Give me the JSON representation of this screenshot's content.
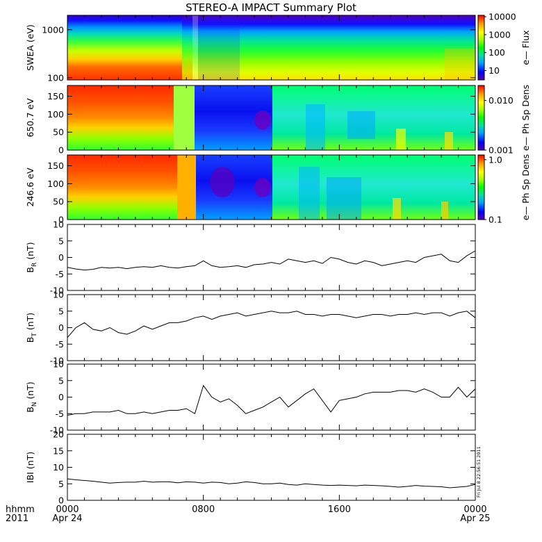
{
  "title": "STEREO-A IMPACT Summary Plot",
  "x_axis": {
    "corner_labels": [
      "hhmm",
      "2011"
    ],
    "ticks": [
      {
        "hour": 0,
        "lines": [
          "0000",
          "Apr 24"
        ]
      },
      {
        "hour": 8,
        "lines": [
          "0800",
          ""
        ]
      },
      {
        "hour": 16,
        "lines": [
          "1600",
          ""
        ]
      },
      {
        "hour": 24,
        "lines": [
          "0000",
          "Apr 25"
        ]
      }
    ],
    "minor_step_hours": 1,
    "range_hours": [
      0,
      24
    ]
  },
  "timestamp": "Fri Jul  8 22:56:51 2011",
  "colors": {
    "line": "#000000",
    "spectrogram_colormap": [
      "#5a00b0",
      "#0000ff",
      "#00a8ff",
      "#00e0a0",
      "#00ff00",
      "#a0ff00",
      "#ffff00",
      "#ff9900",
      "#ff0000"
    ]
  },
  "chart_data": [
    {
      "type": "heatmap",
      "name": "swea",
      "ylabel": "SWEA (eV)",
      "y_ticks": [
        "100",
        "1000"
      ],
      "y_range_ev": [
        90,
        2000
      ],
      "y_scale": "log",
      "colorbar": {
        "label": "e— Flux",
        "ticks": [
          "10",
          "100",
          "1000",
          "10000"
        ],
        "range": [
          3,
          12000
        ],
        "scale": "log"
      },
      "structure": "High flux (red) at low energies before ~0730 UT, transitioning to lower flux (yellow-green) after ~0800 UT; flux falls off with energy, blue/violet above ~1500 eV",
      "transition_hour": 7.5
    },
    {
      "type": "heatmap",
      "name": "pad650",
      "ylabel": "650.7 eV",
      "y_ticks": [
        "0",
        "50",
        "100",
        "150"
      ],
      "y_range_deg": [
        0,
        180
      ],
      "colorbar": {
        "label": "e— Ph Sp Dens",
        "ticks": [
          "0.001",
          "0.010"
        ],
        "range": [
          0.001,
          0.02
        ],
        "scale": "log"
      },
      "structure": "Red/orange (high) before ~0600 UT; blue/violet (low) between ~0730 and ~1200 UT; mixed green/cyan after 1200 UT",
      "transition_hour": 7.5
    },
    {
      "type": "heatmap",
      "name": "pad246",
      "ylabel": "246.6 eV",
      "y_ticks": [
        "0",
        "50",
        "100",
        "150"
      ],
      "y_range_deg": [
        0,
        180
      ],
      "colorbar": {
        "label": "e— Ph Sp Dens",
        "ticks": [
          "0.1",
          "1.0"
        ],
        "range": [
          0.1,
          1.2
        ],
        "scale": "log"
      },
      "structure": "Red/orange (high) before ~0700 UT; blue/violet (low) between ~0730 and ~1200 UT; green/cyan after 1200 UT",
      "transition_hour": 7.5
    },
    {
      "type": "line",
      "name": "BR",
      "ylabel": "B",
      "ylabel_sub": "R",
      "ylabel_unit": " (nT)",
      "ylim": [
        -10,
        10
      ],
      "y_ticks": [
        -10,
        -5,
        0,
        5,
        10
      ],
      "x_hours": [
        0,
        0.5,
        1,
        1.5,
        2,
        2.5,
        3,
        3.5,
        4,
        4.5,
        5,
        5.5,
        6,
        6.5,
        7,
        7.5,
        8,
        8.5,
        9,
        9.5,
        10,
        10.5,
        11,
        11.5,
        12,
        12.5,
        13,
        13.5,
        14,
        14.5,
        15,
        15.5,
        16,
        16.5,
        17,
        17.5,
        18,
        18.5,
        19,
        19.5,
        20,
        20.5,
        21,
        21.5,
        22,
        22.5,
        23,
        23.5,
        24
      ],
      "values": [
        -3,
        -3.5,
        -3.8,
        -3.6,
        -3,
        -3.2,
        -3,
        -3.4,
        -3,
        -2.8,
        -3,
        -2.5,
        -3,
        -3.2,
        -2.8,
        -2.5,
        -1,
        -2.5,
        -3,
        -2.8,
        -2.5,
        -3,
        -2.2,
        -2,
        -1.5,
        -2,
        -0.5,
        -1,
        -1.5,
        -1,
        -1.8,
        0,
        -0.5,
        -1.5,
        -2,
        -1,
        -1.5,
        -2.5,
        -2,
        -1.5,
        -1,
        -1.5,
        0,
        0.5,
        1,
        -1,
        -1.5,
        0.5,
        2
      ]
    },
    {
      "type": "line",
      "name": "BT",
      "ylabel": "B",
      "ylabel_sub": "T",
      "ylabel_unit": " (nT)",
      "ylim": [
        -10,
        10
      ],
      "y_ticks": [
        -10,
        -5,
        0,
        5,
        10
      ],
      "x_hours": [
        0,
        0.5,
        1,
        1.5,
        2,
        2.5,
        3,
        3.5,
        4,
        4.5,
        5,
        5.5,
        6,
        6.5,
        7,
        7.5,
        8,
        8.5,
        9,
        9.5,
        10,
        10.5,
        11,
        11.5,
        12,
        12.5,
        13,
        13.5,
        14,
        14.5,
        15,
        15.5,
        16,
        16.5,
        17,
        17.5,
        18,
        18.5,
        19,
        19.5,
        20,
        20.5,
        21,
        21.5,
        22,
        22.5,
        23,
        23.5,
        24
      ],
      "values": [
        -3,
        0,
        1.5,
        -0.5,
        -1,
        0,
        -1.5,
        -2,
        -1,
        0.5,
        -0.5,
        0.5,
        1.5,
        1.5,
        2,
        3,
        3.5,
        2.5,
        3.5,
        4,
        4.5,
        3.5,
        4,
        4.5,
        5,
        4.5,
        4.5,
        5,
        4,
        4,
        3.5,
        4,
        4,
        3.5,
        3,
        3.5,
        4,
        4,
        3.5,
        4,
        4,
        4.5,
        4,
        4.5,
        4.5,
        3.5,
        4.5,
        5,
        3
      ]
    },
    {
      "type": "line",
      "name": "BN",
      "ylabel": "B",
      "ylabel_sub": "N",
      "ylabel_unit": " (nT)",
      "ylim": [
        -10,
        10
      ],
      "y_ticks": [
        -10,
        -5,
        0,
        5,
        10
      ],
      "x_hours": [
        0,
        0.5,
        1,
        1.5,
        2,
        2.5,
        3,
        3.5,
        4,
        4.5,
        5,
        5.5,
        6,
        6.5,
        7,
        7.5,
        8,
        8.5,
        9,
        9.5,
        10,
        10.5,
        11,
        11.5,
        12,
        12.5,
        13,
        13.5,
        14,
        14.5,
        15,
        15.5,
        16,
        16.5,
        17,
        17.5,
        18,
        18.5,
        19,
        19.5,
        20,
        20.5,
        21,
        21.5,
        22,
        22.5,
        23,
        23.5,
        24
      ],
      "values": [
        -5.5,
        -5,
        -5,
        -4.5,
        -4.5,
        -4.5,
        -4,
        -5,
        -5,
        -4.5,
        -5,
        -4.5,
        -4,
        -4,
        -3.5,
        -5,
        3.5,
        0,
        -1.5,
        -0.5,
        -2.5,
        -5,
        -4,
        -3,
        -1.5,
        0,
        -3,
        -1,
        1,
        2.5,
        -1,
        -4.5,
        -1,
        -0.5,
        0,
        1,
        1.5,
        1.5,
        1.5,
        2,
        2,
        1.5,
        2.5,
        1.5,
        0,
        0,
        3,
        0,
        2.5
      ]
    },
    {
      "type": "line",
      "name": "Bmag",
      "ylabel": "IBI (nT)",
      "ylim": [
        0,
        20
      ],
      "y_ticks": [
        0,
        5,
        10,
        15,
        20
      ],
      "x_hours": [
        0,
        0.5,
        1,
        1.5,
        2,
        2.5,
        3,
        3.5,
        4,
        4.5,
        5,
        5.5,
        6,
        6.5,
        7,
        7.5,
        8,
        8.5,
        9,
        9.5,
        10,
        10.5,
        11,
        11.5,
        12,
        12.5,
        13,
        13.5,
        14,
        14.5,
        15,
        15.5,
        16,
        16.5,
        17,
        17.5,
        18,
        18.5,
        19,
        19.5,
        20,
        20.5,
        21,
        21.5,
        22,
        22.5,
        23,
        23.5,
        24
      ],
      "values": [
        6.5,
        6.2,
        6,
        5.8,
        5.5,
        5.2,
        5.4,
        5.5,
        5.5,
        5.8,
        5.5,
        5.6,
        5.6,
        5.3,
        5.6,
        5.5,
        5.2,
        5.5,
        5.4,
        5,
        5.2,
        5.6,
        5.4,
        5,
        5,
        5.2,
        4.8,
        4.6,
        5,
        4.8,
        4.6,
        4.5,
        4.6,
        4.5,
        4.4,
        4.6,
        4.5,
        4.4,
        4.2,
        4,
        4.2,
        4.5,
        4.3,
        4.2,
        4.1,
        3.8,
        4,
        4.2,
        4.8
      ]
    }
  ]
}
